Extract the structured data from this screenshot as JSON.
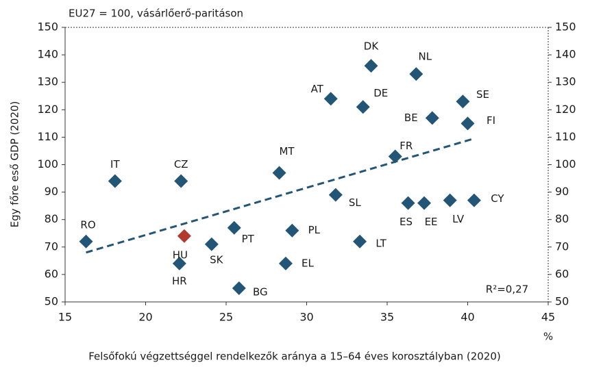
{
  "chart_data": {
    "type": "scatter",
    "subtitle": "EU27 = 100, vásárlőerő-paritáson",
    "ylabel": "Egy főre eső GDP (2020)",
    "xlabel": "Felsőfokú végzettséggel rendelkezők aránya a 15–64 éves korosztályban (2020)",
    "xunit": "%",
    "annotation": "R²=0,27",
    "xlim": [
      15,
      45
    ],
    "xticks": [
      15,
      20,
      25,
      30,
      35,
      40,
      45
    ],
    "ylim": [
      50,
      150
    ],
    "yticks": [
      50,
      60,
      70,
      80,
      90,
      100,
      110,
      120,
      130,
      140,
      150
    ],
    "labels": [
      "RO",
      "IT",
      "CZ",
      "HR",
      "HU",
      "SK",
      "PT",
      "PL",
      "BG",
      "EL",
      "MT",
      "SL",
      "LT",
      "AT",
      "DE",
      "DK",
      "NL",
      "SE",
      "BE",
      "FI",
      "FR",
      "ES",
      "EE",
      "LV",
      "CY"
    ],
    "x": [
      16.3,
      18.1,
      22.2,
      22.1,
      22.4,
      24.1,
      25.5,
      29.1,
      25.8,
      28.7,
      28.3,
      31.8,
      33.3,
      31.5,
      33.5,
      34.0,
      36.8,
      39.7,
      37.8,
      40.0,
      35.5,
      36.3,
      37.3,
      38.9,
      40.4
    ],
    "y": [
      72,
      94,
      94,
      64,
      74,
      71,
      77,
      76,
      55,
      64,
      97,
      89,
      72,
      124,
      121,
      136,
      133,
      123,
      117,
      115,
      103,
      86,
      86,
      87,
      87
    ],
    "colors": [
      "#235577",
      "#235577",
      "#235577",
      "#235577",
      "#b23a2e",
      "#235577",
      "#235577",
      "#235577",
      "#235577",
      "#235577",
      "#235577",
      "#235577",
      "#235577",
      "#235577",
      "#235577",
      "#235577",
      "#235577",
      "#235577",
      "#235577",
      "#235577",
      "#235577",
      "#235577",
      "#235577",
      "#235577",
      "#235577"
    ],
    "trendline": {
      "x": [
        16.3,
        40.4
      ],
      "y": [
        68,
        109.5
      ],
      "color": "#235577"
    }
  }
}
